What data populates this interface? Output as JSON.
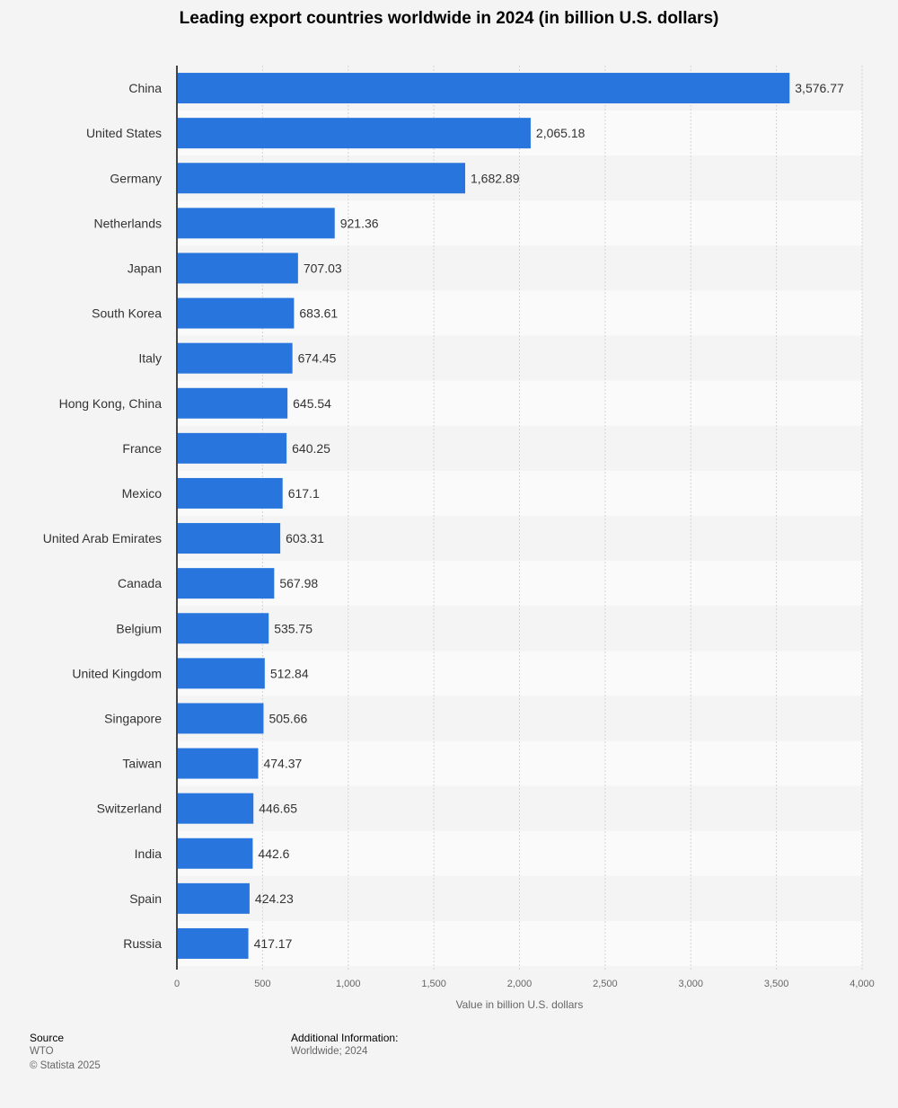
{
  "chart_data": {
    "type": "bar",
    "orientation": "horizontal",
    "title": "Leading export countries worldwide in 2024 (in billion U.S. dollars)",
    "xlabel": "Value in billion U.S. dollars",
    "ylabel": "",
    "xlim": [
      0,
      4000
    ],
    "ticks": [
      "0",
      "500",
      "1,000",
      "1,500",
      "2,000",
      "2,500",
      "3,000",
      "3,500",
      "4,000"
    ],
    "tick_values": [
      0,
      500,
      1000,
      1500,
      2000,
      2500,
      3000,
      3500,
      4000
    ],
    "grid": true,
    "bar_color": "#2876dd",
    "categories": [
      "China",
      "United States",
      "Germany",
      "Netherlands",
      "Japan",
      "South Korea",
      "Italy",
      "Hong Kong, China",
      "France",
      "Mexico",
      "United Arab Emirates",
      "Canada",
      "Belgium",
      "United Kingdom",
      "Singapore",
      "Taiwan",
      "Switzerland",
      "India",
      "Spain",
      "Russia"
    ],
    "values": [
      3576.77,
      2065.18,
      1682.89,
      921.36,
      707.03,
      683.61,
      674.45,
      645.54,
      640.25,
      617.1,
      603.31,
      567.98,
      535.75,
      512.84,
      505.66,
      474.37,
      446.65,
      442.6,
      424.23,
      417.17
    ],
    "value_labels": [
      "3,576.77",
      "2,065.18",
      "1,682.89",
      "921.36",
      "707.03",
      "683.61",
      "674.45",
      "645.54",
      "640.25",
      "617.1",
      "603.31",
      "567.98",
      "535.75",
      "512.84",
      "505.66",
      "474.37",
      "446.65",
      "442.6",
      "424.23",
      "417.17"
    ]
  },
  "footer": {
    "source_heading": "Source",
    "source": "WTO",
    "copyright": "© Statista 2025",
    "info_heading": "Additional Information:",
    "info": "Worldwide; 2024"
  }
}
